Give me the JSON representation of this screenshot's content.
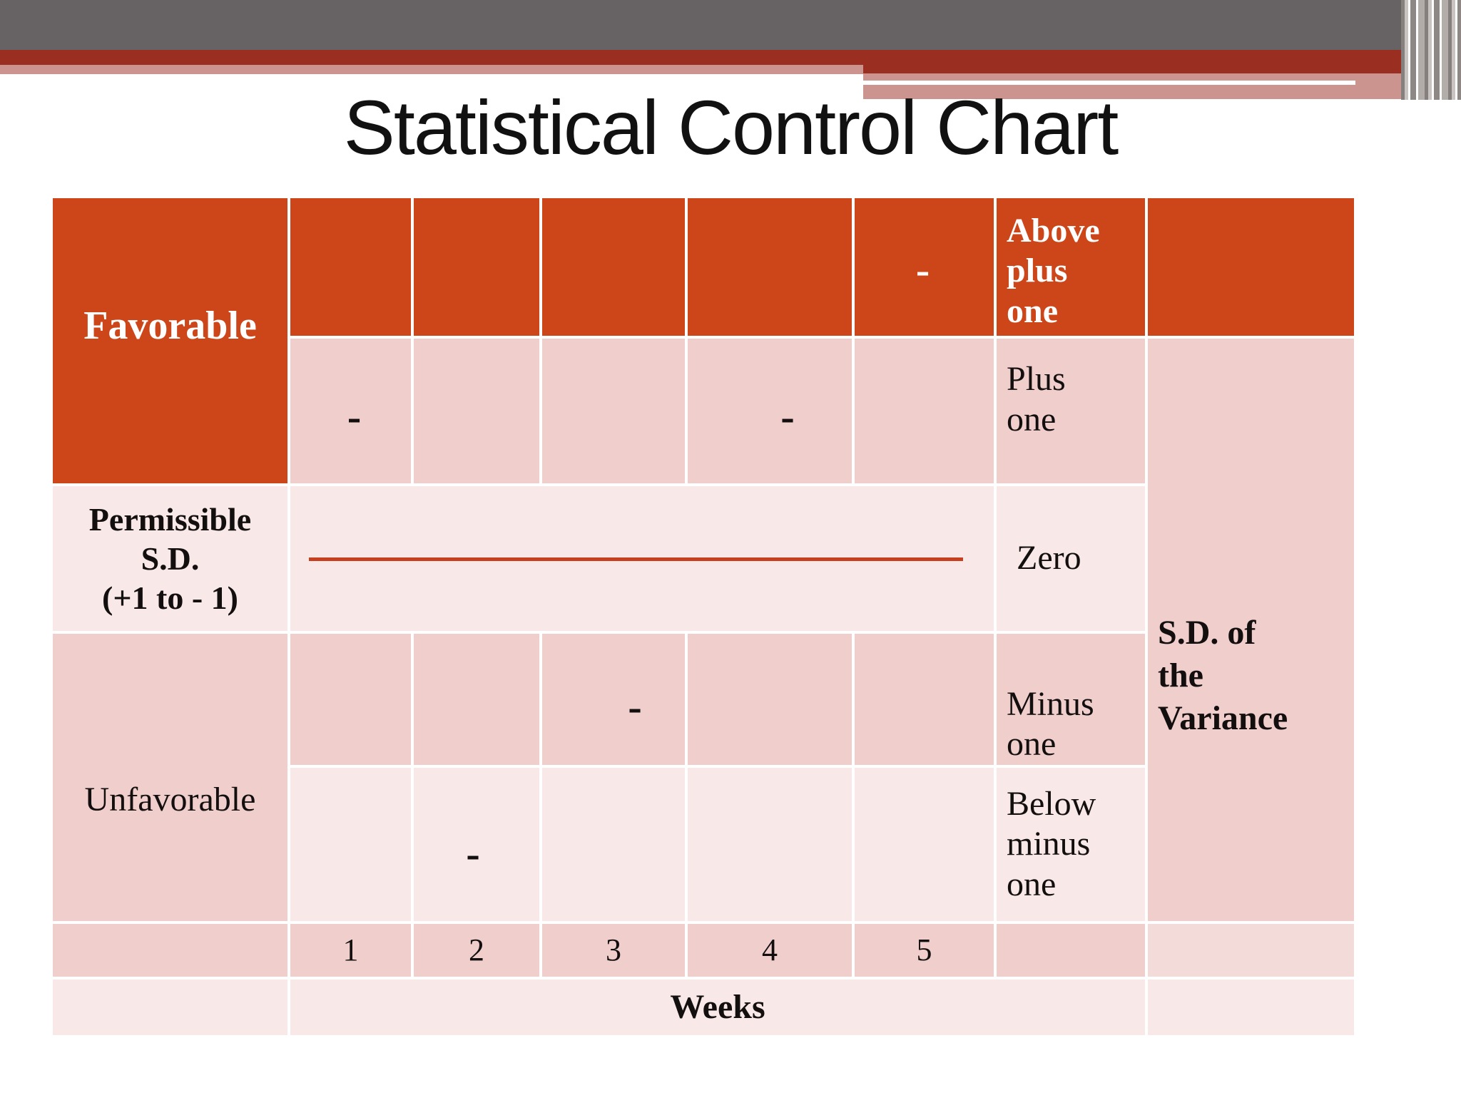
{
  "slide_title": "Statistical Control Chart",
  "table": {
    "zones": {
      "favorable": "Favorable",
      "permissible": "Permissible\nS.D.\n(+1 to - 1)",
      "unfavorable": "Unfavorable"
    },
    "levels": {
      "above_plus_one": "Above\nplus\none",
      "plus_one": "Plus\none",
      "zero": "Zero",
      "minus_one": "Minus\none",
      "below_minus_one": "Below\nminus\none"
    },
    "right_axis_label": "S.D. of\nthe\nVariance",
    "x_axis": {
      "tick_labels": [
        "1",
        "2",
        "3",
        "4",
        "5"
      ],
      "axis_label": "Weeks"
    },
    "mark": "-"
  },
  "chart_data": {
    "type": "scatter",
    "title": "Statistical Control Chart",
    "x": [
      1,
      2,
      3,
      4,
      5
    ],
    "xlabel": "Weeks",
    "ylabel": "S.D. of the Variance",
    "y_categories": [
      "Above plus one",
      "Plus one",
      "Zero",
      "Minus one",
      "Below minus one"
    ],
    "zones": [
      "Favorable",
      "Permissible S.D. (+1 to - 1)",
      "Unfavorable"
    ],
    "points": [
      {
        "week": 1,
        "level": "Plus one",
        "zone": "Favorable"
      },
      {
        "week": 2,
        "level": "Below minus one",
        "zone": "Unfavorable"
      },
      {
        "week": 3,
        "level": "Minus one",
        "zone": "Unfavorable"
      },
      {
        "week": 4,
        "level": "Plus one",
        "zone": "Favorable"
      },
      {
        "week": 5,
        "level": "Above plus one",
        "zone": "Favorable"
      }
    ],
    "center_line_level": "Zero",
    "marker": "-",
    "legend_position": "none",
    "grid": "table-grid"
  },
  "colors": {
    "header_orange": "#CC4619",
    "cell_pink": "#EFCECC",
    "cell_light_pink": "#F8E9E8",
    "cell_sd_row6_pink": "#F2DBD8",
    "banner_gray": "#676263",
    "banner_dark_red": "#9A2E21",
    "banner_pink": "#CB948E",
    "control_line_red": "#C64020",
    "title_text": "#111111",
    "cell_text_dark": "#140F0F",
    "cell_text_white": "#FFFFFF"
  }
}
